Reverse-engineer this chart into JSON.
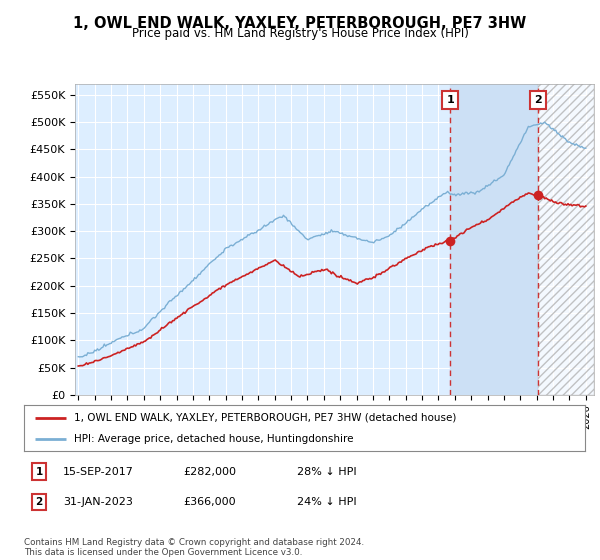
{
  "title": "1, OWL END WALK, YAXLEY, PETERBOROUGH, PE7 3HW",
  "subtitle": "Price paid vs. HM Land Registry's House Price Index (HPI)",
  "ylim": [
    0,
    570000
  ],
  "yticks": [
    0,
    50000,
    100000,
    150000,
    200000,
    250000,
    300000,
    350000,
    400000,
    450000,
    500000,
    550000
  ],
  "ytick_labels": [
    "£0",
    "£50K",
    "£100K",
    "£150K",
    "£200K",
    "£250K",
    "£300K",
    "£350K",
    "£400K",
    "£450K",
    "£500K",
    "£550K"
  ],
  "hpi_color": "#7bafd4",
  "price_color": "#cc2222",
  "dashed_line_color": "#cc3333",
  "plot_bg_color": "#ddeeff",
  "shade_between_color": "#cce0f5",
  "marker1_date": 2017.71,
  "marker1_price": 282000,
  "marker2_date": 2023.08,
  "marker2_price": 366000,
  "xlim_start": 1994.8,
  "xlim_end": 2026.5,
  "legend_house_label": "1, OWL END WALK, YAXLEY, PETERBOROUGH, PE7 3HW (detached house)",
  "legend_hpi_label": "HPI: Average price, detached house, Huntingdonshire",
  "annotation1_date": "15-SEP-2017",
  "annotation1_price": "£282,000",
  "annotation1_pct": "28% ↓ HPI",
  "annotation2_date": "31-JAN-2023",
  "annotation2_price": "£366,000",
  "annotation2_pct": "24% ↓ HPI",
  "footer": "Contains HM Land Registry data © Crown copyright and database right 2024.\nThis data is licensed under the Open Government Licence v3.0."
}
